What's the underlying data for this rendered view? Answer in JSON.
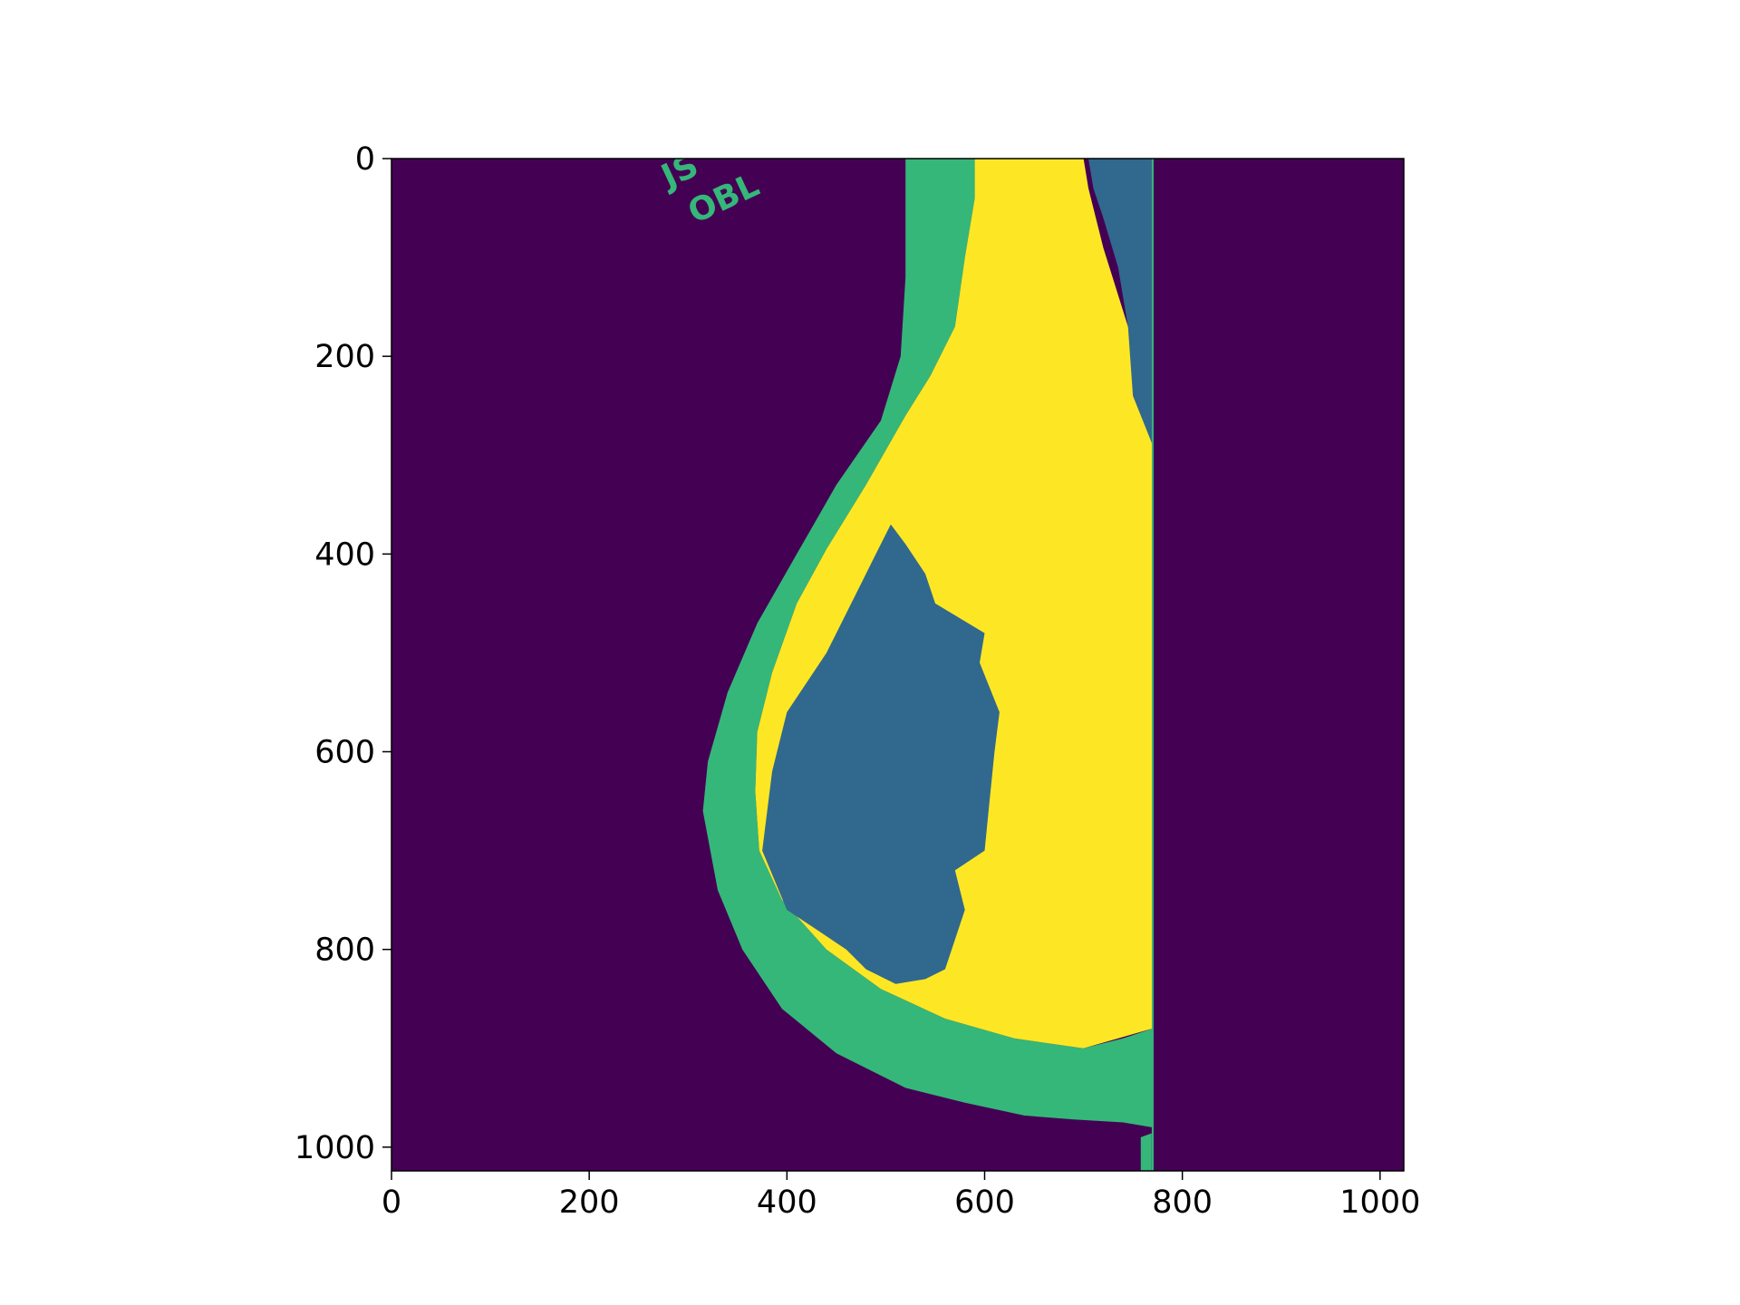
{
  "chart_data": {
    "type": "heatmap",
    "title": "",
    "xlabel": "",
    "ylabel": "",
    "xlim": [
      0,
      1024
    ],
    "ylim": [
      1024,
      0
    ],
    "y_inverted": true,
    "grid": false,
    "legend": "none",
    "xticks": [
      0,
      200,
      400,
      600,
      800,
      1000
    ],
    "yticks": [
      0,
      200,
      400,
      600,
      800,
      1000
    ],
    "xtick_labels": [
      "0",
      "200",
      "400",
      "600",
      "800",
      "1000"
    ],
    "ytick_labels": [
      "0",
      "200",
      "400",
      "600",
      "800",
      "1000"
    ],
    "colormap": "viridis",
    "class_colors": {
      "background": "#440154",
      "class_1": "#31688e",
      "class_2": "#35b779",
      "class_3": "#fde725"
    },
    "image_text": [
      "JS",
      "OBL"
    ],
    "regions": {
      "skin_band_class_2": [
        [
          520,
          0
        ],
        [
          590,
          0
        ],
        [
          590,
          40
        ],
        [
          580,
          100
        ],
        [
          570,
          170
        ],
        [
          545,
          220
        ],
        [
          520,
          260
        ],
        [
          480,
          330
        ],
        [
          440,
          395
        ],
        [
          410,
          450
        ],
        [
          385,
          520
        ],
        [
          370,
          580
        ],
        [
          368,
          640
        ],
        [
          372,
          700
        ],
        [
          395,
          750
        ],
        [
          440,
          800
        ],
        [
          495,
          840
        ],
        [
          560,
          870
        ],
        [
          630,
          890
        ],
        [
          700,
          900
        ],
        [
          740,
          890
        ],
        [
          770,
          880
        ],
        [
          770,
          980
        ],
        [
          740,
          975
        ],
        [
          690,
          972
        ],
        [
          640,
          968
        ],
        [
          580,
          955
        ],
        [
          520,
          940
        ],
        [
          450,
          905
        ],
        [
          395,
          860
        ],
        [
          355,
          800
        ],
        [
          330,
          740
        ],
        [
          315,
          660
        ],
        [
          320,
          610
        ],
        [
          340,
          540
        ],
        [
          370,
          470
        ],
        [
          410,
          400
        ],
        [
          450,
          330
        ],
        [
          495,
          265
        ],
        [
          515,
          200
        ],
        [
          520,
          120
        ]
      ],
      "dense_tissue_class_3": [
        [
          590,
          0
        ],
        [
          700,
          0
        ],
        [
          705,
          30
        ],
        [
          720,
          90
        ],
        [
          745,
          170
        ],
        [
          765,
          240
        ],
        [
          770,
          290
        ],
        [
          770,
          880
        ],
        [
          700,
          900
        ],
        [
          630,
          890
        ],
        [
          560,
          870
        ],
        [
          495,
          840
        ],
        [
          440,
          800
        ],
        [
          395,
          750
        ],
        [
          372,
          700
        ],
        [
          368,
          640
        ],
        [
          370,
          580
        ],
        [
          385,
          520
        ],
        [
          410,
          450
        ],
        [
          440,
          395
        ],
        [
          480,
          330
        ],
        [
          520,
          260
        ],
        [
          545,
          220
        ],
        [
          570,
          170
        ],
        [
          580,
          100
        ],
        [
          590,
          40
        ]
      ],
      "gland_class_1": [
        [
          505,
          370
        ],
        [
          520,
          390
        ],
        [
          540,
          420
        ],
        [
          550,
          450
        ],
        [
          600,
          480
        ],
        [
          595,
          510
        ],
        [
          615,
          560
        ],
        [
          610,
          600
        ],
        [
          605,
          650
        ],
        [
          600,
          700
        ],
        [
          570,
          720
        ],
        [
          580,
          760
        ],
        [
          560,
          820
        ],
        [
          540,
          830
        ],
        [
          510,
          835
        ],
        [
          480,
          820
        ],
        [
          460,
          800
        ],
        [
          430,
          780
        ],
        [
          400,
          760
        ],
        [
          375,
          700
        ],
        [
          385,
          620
        ],
        [
          400,
          560
        ],
        [
          440,
          500
        ],
        [
          470,
          440
        ],
        [
          490,
          400
        ]
      ],
      "upper_edge_class_1": [
        [
          705,
          0
        ],
        [
          770,
          0
        ],
        [
          770,
          290
        ],
        [
          750,
          240
        ],
        [
          745,
          170
        ],
        [
          735,
          110
        ],
        [
          720,
          60
        ],
        [
          710,
          30
        ]
      ],
      "nipple_class_3": [
        [
          758,
          990
        ],
        [
          769,
          986
        ],
        [
          769,
          1024
        ],
        [
          758,
          1024
        ]
      ]
    }
  }
}
